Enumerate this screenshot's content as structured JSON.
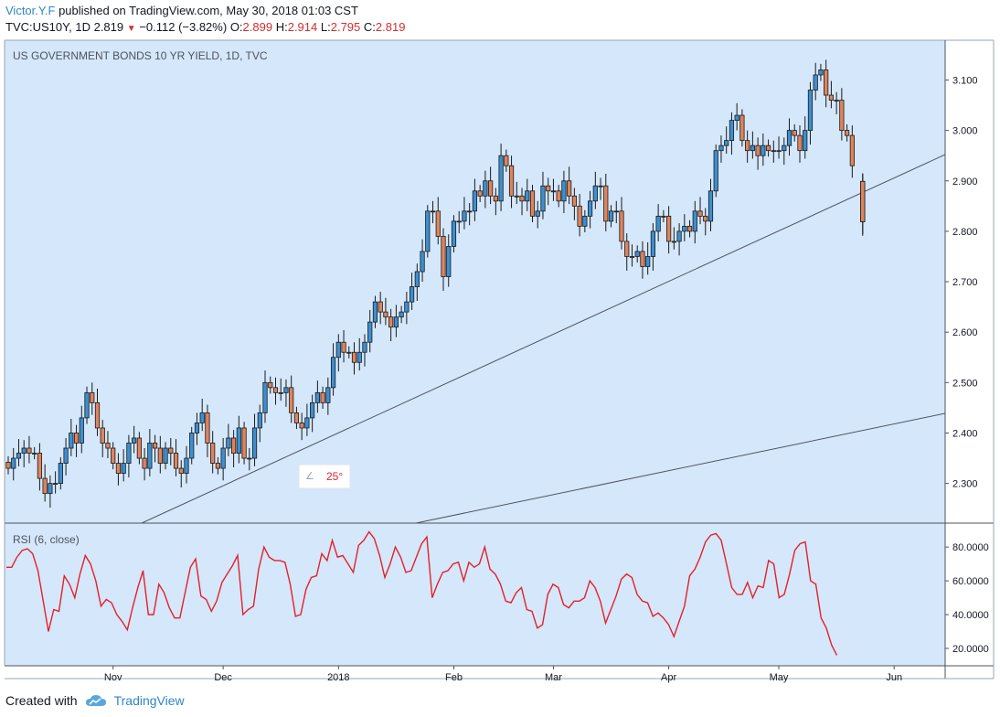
{
  "header": {
    "author": "Victor.Y.F",
    "published": "published on TradingView.com, May 30, 2018 01:03 CST",
    "symbol": "TVC:US10Y, 1D",
    "last": "2.819",
    "change": "−0.112 (−3.82%)",
    "open_label": "O:",
    "open": "2.899",
    "high_label": "H:",
    "high": "2.914",
    "low_label": "L:",
    "low": "2.795",
    "close_label": "C:",
    "close": "2.819"
  },
  "footer": {
    "created_with": "Created with",
    "brand": "TradingView"
  },
  "colors": {
    "up": "#3d8fd1",
    "down": "#e0845c",
    "panel_bg": "#d4e7fb",
    "rsi": "#e52028",
    "angle": "#e52028"
  },
  "chart_data": {
    "type": "candlestick",
    "title": "US GOVERNMENT BONDS 10 YR YIELD, 1D, TVC",
    "price_ticks": [
      "3.100",
      "3.000",
      "2.900",
      "2.800",
      "2.700",
      "2.600",
      "2.500",
      "2.400",
      "2.300"
    ],
    "price_tick_values": [
      3.1,
      3.0,
      2.9,
      2.8,
      2.7,
      2.6,
      2.5,
      2.4,
      2.3
    ],
    "ylim": [
      2.22,
      3.18
    ],
    "x_labels": [
      "Nov",
      "Dec",
      "2018",
      "Feb",
      "Mar",
      "Apr",
      "May",
      "Jun"
    ],
    "x_label_index": [
      20,
      41,
      63,
      85,
      104,
      126,
      147,
      169
    ],
    "closes": [
      2.33,
      2.35,
      2.36,
      2.37,
      2.36,
      2.36,
      2.31,
      2.28,
      2.3,
      2.3,
      2.34,
      2.37,
      2.4,
      2.38,
      2.43,
      2.48,
      2.46,
      2.41,
      2.38,
      2.37,
      2.34,
      2.32,
      2.34,
      2.38,
      2.39,
      2.35,
      2.33,
      2.38,
      2.37,
      2.34,
      2.37,
      2.36,
      2.33,
      2.32,
      2.35,
      2.4,
      2.42,
      2.44,
      2.38,
      2.34,
      2.33,
      2.37,
      2.39,
      2.36,
      2.41,
      2.35,
      2.35,
      2.41,
      2.44,
      2.5,
      2.49,
      2.48,
      2.48,
      2.49,
      2.44,
      2.42,
      2.41,
      2.43,
      2.46,
      2.48,
      2.46,
      2.49,
      2.55,
      2.58,
      2.56,
      2.56,
      2.54,
      2.56,
      2.58,
      2.62,
      2.66,
      2.64,
      2.63,
      2.61,
      2.63,
      2.64,
      2.66,
      2.69,
      2.72,
      2.76,
      2.84,
      2.84,
      2.79,
      2.71,
      2.77,
      2.82,
      2.82,
      2.84,
      2.84,
      2.88,
      2.87,
      2.9,
      2.87,
      2.86,
      2.95,
      2.93,
      2.87,
      2.87,
      2.86,
      2.88,
      2.83,
      2.84,
      2.89,
      2.88,
      2.88,
      2.86,
      2.9,
      2.87,
      2.85,
      2.81,
      2.83,
      2.86,
      2.89,
      2.89,
      2.82,
      2.84,
      2.84,
      2.78,
      2.75,
      2.75,
      2.76,
      2.73,
      2.75,
      2.8,
      2.83,
      2.83,
      2.78,
      2.78,
      2.8,
      2.81,
      2.8,
      2.84,
      2.83,
      2.82,
      2.88,
      2.96,
      2.97,
      2.98,
      3.02,
      3.03,
      2.98,
      2.96,
      2.97,
      2.95,
      2.97,
      2.96,
      2.96,
      2.96,
      2.97,
      3.0,
      2.99,
      2.96,
      3.0,
      3.08,
      3.11,
      3.12,
      3.07,
      3.06,
      3.06,
      3.0,
      2.99,
      2.93,
      null,
      2.819
    ],
    "rsi": {
      "label": "RSI (6, close)",
      "ticks": [
        "80.0000",
        "60.0000",
        "40.0000",
        "20.0000"
      ],
      "tick_values": [
        80,
        60,
        40,
        20
      ],
      "ylim": [
        12,
        92
      ],
      "values": [
        68,
        68,
        74,
        78,
        79,
        76,
        66,
        48,
        30,
        43,
        42,
        63,
        58,
        50,
        64,
        75,
        70,
        60,
        45,
        49,
        47,
        40,
        36,
        31,
        44,
        56,
        66,
        40,
        40,
        58,
        53,
        44,
        38,
        38,
        53,
        68,
        73,
        51,
        49,
        42,
        48,
        59,
        64,
        69,
        75,
        40,
        43,
        45,
        67,
        80,
        74,
        72,
        72,
        71,
        58,
        39,
        40,
        55,
        62,
        63,
        76,
        72,
        84,
        74,
        75,
        70,
        65,
        81,
        84,
        89,
        85,
        75,
        62,
        70,
        80,
        74,
        65,
        66,
        74,
        82,
        86,
        50,
        58,
        65,
        66,
        70,
        71,
        60,
        71,
        68,
        70,
        80,
        67,
        64,
        58,
        48,
        47,
        53,
        56,
        43,
        42,
        32,
        34,
        52,
        58,
        56,
        46,
        44,
        48,
        48,
        50,
        60,
        56,
        48,
        35,
        43,
        51,
        61,
        64,
        62,
        52,
        48,
        47,
        39,
        41,
        38,
        34,
        27,
        36,
        45,
        63,
        67,
        74,
        83,
        87,
        88,
        84,
        70,
        56,
        52,
        52,
        59,
        50,
        57,
        56,
        72,
        70,
        50,
        52,
        64,
        78,
        82,
        83,
        60,
        58,
        38,
        32,
        22,
        16
      ]
    },
    "trendline_annotation": "25°"
  }
}
